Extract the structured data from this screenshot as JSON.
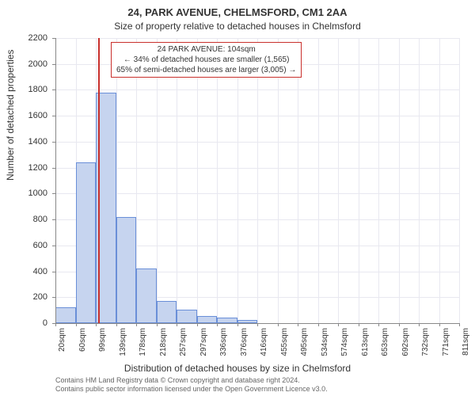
{
  "title_main": "24, PARK AVENUE, CHELMSFORD, CM1 2AA",
  "title_sub": "Size of property relative to detached houses in Chelmsford",
  "y_axis_label": "Number of detached properties",
  "x_axis_label": "Distribution of detached houses by size in Chelmsford",
  "annotation": {
    "line1": "24 PARK AVENUE: 104sqm",
    "line2": "← 34% of detached houses are smaller (1,565)",
    "line3": "65% of semi-detached houses are larger (3,005) →"
  },
  "footer_line1": "Contains HM Land Registry data © Crown copyright and database right 2024.",
  "footer_line2": "Contains public sector information licensed under the Open Government Licence v3.0.",
  "chart": {
    "type": "histogram",
    "background_color": "#ffffff",
    "grid_color": "#e8e8f0",
    "axis_color": "#888888",
    "bar_fill": "#c6d4ef",
    "bar_stroke": "#6a8fd8",
    "bar_stroke_width": 1,
    "marker_color": "#c9302c",
    "annotation_border": "#c9302c",
    "ylim": [
      0,
      2200
    ],
    "ytick_step": 200,
    "y_ticks": [
      0,
      200,
      400,
      600,
      800,
      1000,
      1200,
      1400,
      1600,
      1800,
      2000,
      2200
    ],
    "x_tick_labels": [
      "20sqm",
      "60sqm",
      "99sqm",
      "139sqm",
      "178sqm",
      "218sqm",
      "257sqm",
      "297sqm",
      "336sqm",
      "376sqm",
      "416sqm",
      "455sqm",
      "495sqm",
      "534sqm",
      "574sqm",
      "613sqm",
      "653sqm",
      "692sqm",
      "732sqm",
      "771sqm",
      "811sqm"
    ],
    "x_range": [
      20,
      811
    ],
    "marker_x": 104,
    "bars": [
      {
        "x_start": 20,
        "x_end": 60,
        "value": 120
      },
      {
        "x_start": 60,
        "x_end": 99,
        "value": 1240
      },
      {
        "x_start": 99,
        "x_end": 139,
        "value": 1780
      },
      {
        "x_start": 139,
        "x_end": 178,
        "value": 820
      },
      {
        "x_start": 178,
        "x_end": 218,
        "value": 420
      },
      {
        "x_start": 218,
        "x_end": 257,
        "value": 170
      },
      {
        "x_start": 257,
        "x_end": 297,
        "value": 105
      },
      {
        "x_start": 297,
        "x_end": 336,
        "value": 55
      },
      {
        "x_start": 336,
        "x_end": 376,
        "value": 45
      },
      {
        "x_start": 376,
        "x_end": 416,
        "value": 25
      }
    ],
    "title_fontsize": 13,
    "subtitle_fontsize": 12,
    "label_fontsize": 12,
    "tick_fontsize": 11,
    "footer_fontsize": 9
  }
}
